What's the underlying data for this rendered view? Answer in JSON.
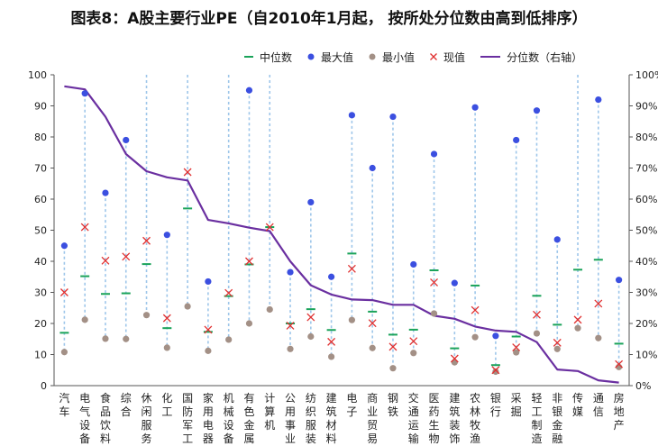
{
  "title": "图表8：A股主要行业PE（自2010年1月起， 按所处分位数由高到低排序）",
  "legend": {
    "median": "中位数",
    "max": "最大值",
    "min": "最小值",
    "current": "现值",
    "percentile": "分位数（右轴）"
  },
  "colors": {
    "median": "#1aa35a",
    "max": "#3b4fe0",
    "min": "#a39086",
    "current": "#e03030",
    "percentile": "#6a2fa0",
    "range": "#9ec6ea",
    "axis": "#555555"
  },
  "chart_data": {
    "type": "scatter",
    "title": "图表8：A股主要行业PE（自2010年1月起， 按所处分位数由高到低排序）",
    "categories": [
      "汽车",
      "电气设备",
      "食品饮料",
      "综合",
      "休闲服务",
      "化工",
      "国防军工",
      "家用电器",
      "机械设备",
      "有色金属",
      "计算机",
      "公用事业",
      "纺织服装",
      "建筑材料",
      "电子",
      "商业贸易",
      "钢铁",
      "交通运输",
      "医药生物",
      "建筑装饰",
      "农林牧渔",
      "银行",
      "采掘",
      "轻工制造",
      "非银金融",
      "传媒",
      "通信",
      "房地产"
    ],
    "y_left": {
      "min": 0,
      "max": 100,
      "ticks": [
        "0",
        "10",
        "20",
        "30",
        "40",
        "50",
        "60",
        "70",
        "80",
        "90",
        "100"
      ]
    },
    "y_right": {
      "min": 0,
      "max": 1,
      "ticks": [
        "0%",
        "10%",
        "20%",
        "30%",
        "40%",
        "50%",
        "60%",
        "70%",
        "80%",
        "90%",
        "100%"
      ]
    },
    "series": [
      {
        "name": "中位数",
        "axis": "left",
        "values": [
          17,
          35.2,
          29.5,
          29.7,
          39.1,
          18.5,
          57,
          17.3,
          28.8,
          39,
          51,
          20,
          24.6,
          17.9,
          42.5,
          23.8,
          16.4,
          18,
          37.1,
          12,
          32.2,
          6.6,
          15.8,
          28.9,
          19.6,
          37.3,
          40.5,
          13.5
        ]
      },
      {
        "name": "最大值",
        "axis": "left",
        "values": [
          45,
          94,
          62,
          79,
          101,
          48.5,
          101,
          33.5,
          101,
          95,
          101,
          36.5,
          59,
          35,
          87,
          70,
          86.5,
          39,
          74.5,
          33,
          89.5,
          16,
          79,
          88.5,
          47,
          101,
          92,
          34
        ]
      },
      {
        "name": "最小值",
        "axis": "left",
        "values": [
          10.8,
          21.2,
          15.1,
          15,
          22.7,
          12.2,
          25.5,
          11.2,
          14.8,
          20,
          24.5,
          11.8,
          15.8,
          9.3,
          21.1,
          12.1,
          5.6,
          10.5,
          23.2,
          7.5,
          15.6,
          4.5,
          10.7,
          16.8,
          11.8,
          18.5,
          15.3,
          6
        ]
      },
      {
        "name": "现值",
        "axis": "left",
        "values": [
          30,
          51,
          40.2,
          41.5,
          46.6,
          21.7,
          68.7,
          18,
          29.8,
          40,
          51,
          19.3,
          22,
          14.1,
          37.6,
          20.1,
          12.5,
          14.3,
          33.2,
          8.7,
          24.3,
          5,
          12.3,
          22.8,
          13.8,
          21.2,
          26.4,
          6.9
        ]
      },
      {
        "name": "分位数（右轴）",
        "axis": "right",
        "values": [
          0.963,
          0.953,
          0.865,
          0.745,
          0.69,
          0.67,
          0.66,
          0.533,
          0.522,
          0.508,
          0.497,
          0.4,
          0.323,
          0.293,
          0.277,
          0.275,
          0.26,
          0.26,
          0.225,
          0.215,
          0.19,
          0.177,
          0.173,
          0.14,
          0.052,
          0.047,
          0.017,
          0.01
        ]
      }
    ]
  }
}
